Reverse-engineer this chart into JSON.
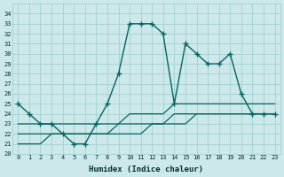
{
  "xlabel": "Humidex (Indice chaleur)",
  "bg_color": "#cce8e8",
  "grid_color": "#99cccc",
  "line_color": "#006666",
  "xlim": [
    -0.5,
    23.5
  ],
  "ylim": [
    20,
    35
  ],
  "xticks": [
    0,
    1,
    2,
    3,
    4,
    5,
    6,
    7,
    8,
    9,
    10,
    11,
    12,
    13,
    14,
    15,
    16,
    17,
    18,
    19,
    20,
    21,
    22,
    23
  ],
  "yticks": [
    20,
    21,
    22,
    23,
    24,
    25,
    26,
    27,
    28,
    29,
    30,
    31,
    32,
    33,
    34
  ],
  "main_y": [
    25,
    24,
    23,
    23,
    22,
    21,
    21,
    23,
    25,
    28,
    33,
    33,
    33,
    32,
    25,
    31,
    30,
    29,
    29,
    30,
    26,
    24,
    24,
    24
  ],
  "line2_y": [
    23,
    23,
    23,
    23,
    23,
    23,
    23,
    23,
    23,
    23,
    24,
    24,
    24,
    24,
    25,
    25,
    25,
    25,
    25,
    25,
    25,
    25,
    25,
    25
  ],
  "line3_y": [
    22,
    22,
    22,
    22,
    22,
    22,
    22,
    22,
    22,
    23,
    23,
    23,
    23,
    23,
    24,
    24,
    24,
    24,
    24,
    24,
    24,
    24,
    24,
    24
  ],
  "line4_y": [
    21,
    21,
    21,
    22,
    22,
    22,
    22,
    22,
    22,
    22,
    22,
    22,
    23,
    23,
    23,
    23,
    24,
    24,
    24,
    24,
    24,
    24,
    24,
    24
  ]
}
